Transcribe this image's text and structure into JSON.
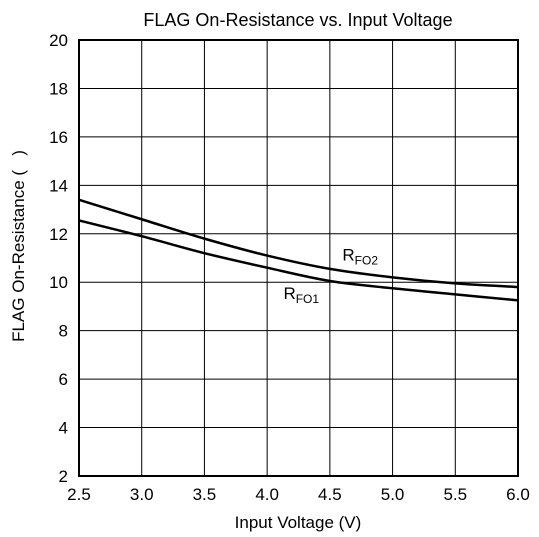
{
  "chart_data": {
    "type": "line",
    "title": "FLAG On-Resistance vs. Input Voltage",
    "xlabel": "Input Voltage (V)",
    "ylabel": "FLAG On-Resistance (   )",
    "xlim": [
      2.5,
      6.0
    ],
    "ylim": [
      2,
      20
    ],
    "xticks": [
      2.5,
      3.0,
      3.5,
      4.0,
      4.5,
      5.0,
      5.5,
      6.0
    ],
    "xtick_labels": [
      "2.5",
      "3.0",
      "3.5",
      "4.0",
      "4.5",
      "5.0",
      "5.5",
      "6.0"
    ],
    "yticks": [
      2,
      4,
      6,
      8,
      10,
      12,
      14,
      16,
      18,
      20
    ],
    "ytick_labels": [
      "2",
      "4",
      "6",
      "8",
      "10",
      "12",
      "14",
      "16",
      "18",
      "20"
    ],
    "grid": true,
    "series": [
      {
        "name": "RFO2",
        "label_main": "R",
        "label_sub": "FO2",
        "x": [
          2.5,
          3.0,
          3.5,
          4.0,
          4.5,
          5.0,
          5.5,
          6.0
        ],
        "values": [
          13.4,
          12.6,
          11.8,
          11.1,
          10.55,
          10.2,
          9.95,
          9.8
        ]
      },
      {
        "name": "RFO1",
        "label_main": "R",
        "label_sub": "FO1",
        "x": [
          2.5,
          3.0,
          3.5,
          4.0,
          4.5,
          5.0,
          5.5,
          6.0
        ],
        "values": [
          12.55,
          11.9,
          11.2,
          10.6,
          10.05,
          9.75,
          9.5,
          9.25
        ]
      }
    ]
  }
}
